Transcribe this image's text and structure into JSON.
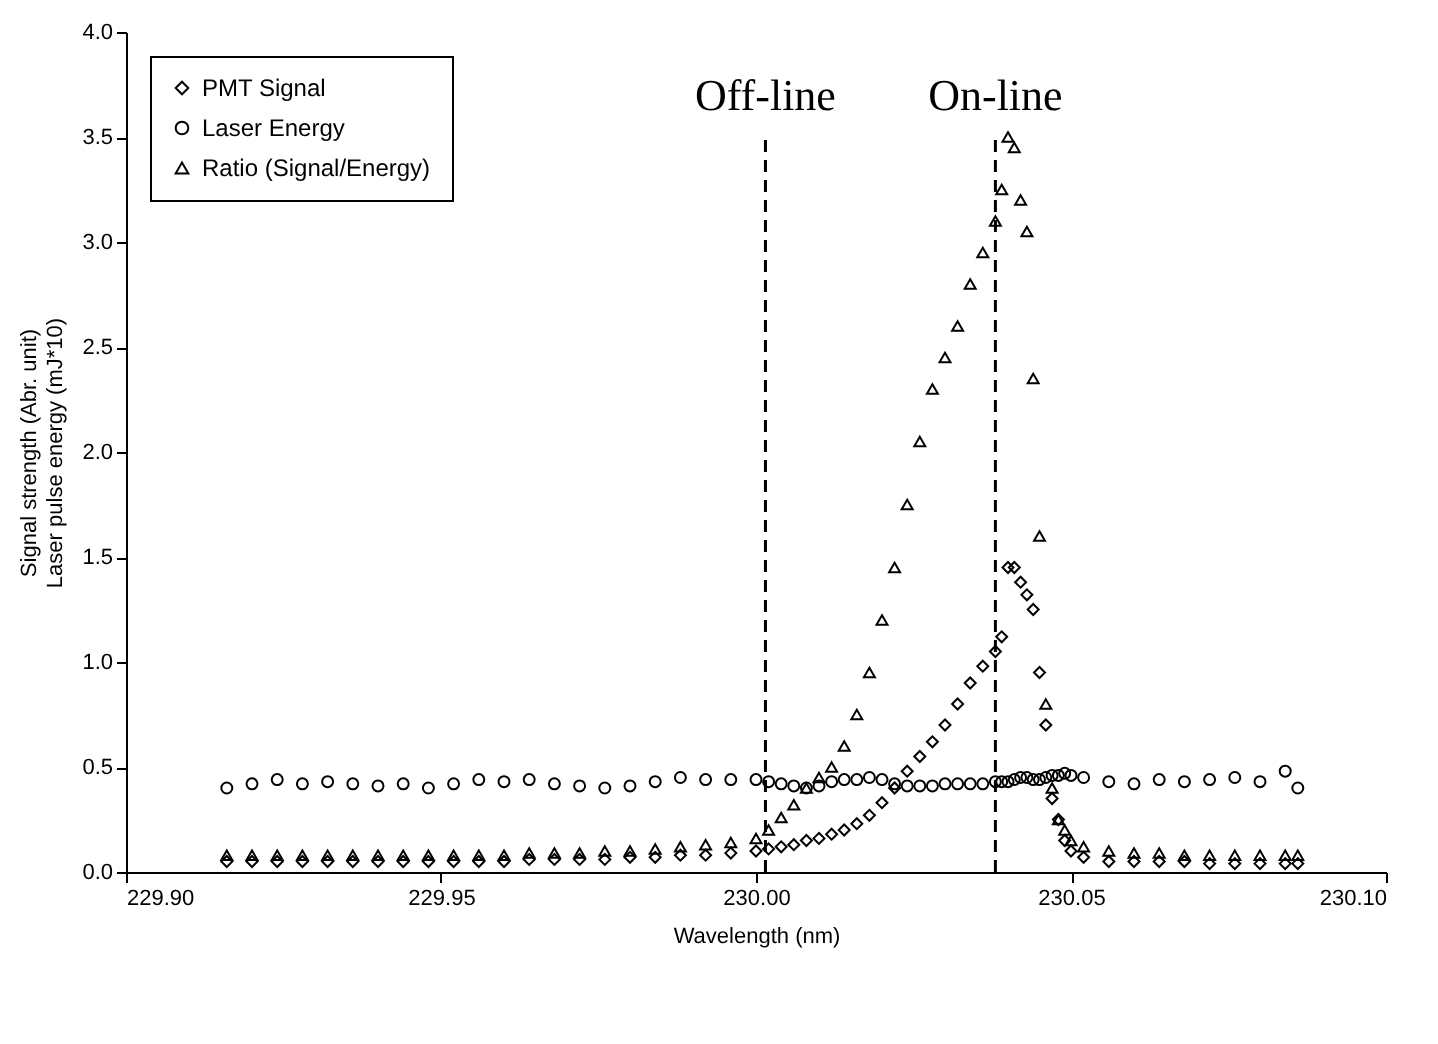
{
  "chart_data": {
    "type": "scatter",
    "xlabel": "Wavelength (nm)",
    "ylabel": "Signal strength (Abr. unit)\nLaser pulse energy (mJ*10)",
    "x": [
      229.916,
      229.92,
      229.924,
      229.928,
      229.932,
      229.936,
      229.94,
      229.944,
      229.948,
      229.952,
      229.956,
      229.96,
      229.964,
      229.968,
      229.972,
      229.976,
      229.98,
      229.984,
      229.988,
      229.992,
      229.996,
      230.0,
      230.002,
      230.004,
      230.006,
      230.008,
      230.01,
      230.012,
      230.014,
      230.016,
      230.018,
      230.02,
      230.022,
      230.024,
      230.026,
      230.028,
      230.03,
      230.032,
      230.034,
      230.036,
      230.038,
      230.039,
      230.04,
      230.041,
      230.042,
      230.043,
      230.044,
      230.045,
      230.046,
      230.047,
      230.048,
      230.049,
      230.05,
      230.052,
      230.056,
      230.06,
      230.064,
      230.068,
      230.072,
      230.076,
      230.08,
      230.084,
      230.086
    ],
    "series": [
      {
        "name": "PMT Signal",
        "color": "#000000",
        "marker": "diamond",
        "values": [
          0.05,
          0.05,
          0.05,
          0.05,
          0.05,
          0.05,
          0.05,
          0.05,
          0.05,
          0.05,
          0.05,
          0.05,
          0.06,
          0.06,
          0.06,
          0.06,
          0.07,
          0.07,
          0.08,
          0.08,
          0.09,
          0.1,
          0.11,
          0.12,
          0.13,
          0.15,
          0.16,
          0.18,
          0.2,
          0.23,
          0.27,
          0.33,
          0.4,
          0.48,
          0.55,
          0.62,
          0.7,
          0.8,
          0.9,
          0.98,
          1.05,
          1.12,
          1.45,
          1.45,
          1.38,
          1.32,
          1.25,
          0.95,
          0.7,
          0.35,
          0.25,
          0.15,
          0.1,
          0.07,
          0.05,
          0.05,
          0.05,
          0.05,
          0.04,
          0.04,
          0.04,
          0.04,
          0.04
        ]
      },
      {
        "name": "Laser Energy",
        "color": "#000000",
        "marker": "circle",
        "values": [
          0.4,
          0.42,
          0.44,
          0.42,
          0.43,
          0.42,
          0.41,
          0.42,
          0.4,
          0.42,
          0.44,
          0.43,
          0.44,
          0.42,
          0.41,
          0.4,
          0.41,
          0.43,
          0.45,
          0.44,
          0.44,
          0.44,
          0.43,
          0.42,
          0.41,
          0.4,
          0.41,
          0.43,
          0.44,
          0.44,
          0.45,
          0.44,
          0.42,
          0.41,
          0.41,
          0.41,
          0.42,
          0.42,
          0.42,
          0.42,
          0.43,
          0.43,
          0.43,
          0.44,
          0.45,
          0.45,
          0.44,
          0.44,
          0.45,
          0.46,
          0.46,
          0.47,
          0.46,
          0.45,
          0.43,
          0.42,
          0.44,
          0.43,
          0.44,
          0.45,
          0.43,
          0.48,
          0.4
        ]
      },
      {
        "name": "Ratio (Signal/Energy)",
        "color": "#000000",
        "marker": "triangle",
        "values": [
          0.08,
          0.08,
          0.08,
          0.08,
          0.08,
          0.08,
          0.08,
          0.08,
          0.08,
          0.08,
          0.08,
          0.08,
          0.09,
          0.09,
          0.09,
          0.1,
          0.1,
          0.11,
          0.12,
          0.13,
          0.14,
          0.16,
          0.2,
          0.26,
          0.32,
          0.4,
          0.45,
          0.5,
          0.6,
          0.75,
          0.95,
          1.2,
          1.45,
          1.75,
          2.05,
          2.3,
          2.45,
          2.6,
          2.8,
          2.95,
          3.1,
          3.25,
          3.5,
          3.45,
          3.2,
          3.05,
          2.35,
          1.6,
          0.8,
          0.4,
          0.25,
          0.2,
          0.15,
          0.12,
          0.1,
          0.09,
          0.09,
          0.08,
          0.08,
          0.08,
          0.08,
          0.08,
          0.08
        ]
      }
    ],
    "xlim": [
      229.9,
      230.1
    ],
    "xticks": [
      {
        "value": 229.9,
        "label": "229.90"
      },
      {
        "value": 229.95,
        "label": "229.95"
      },
      {
        "value": 230.0,
        "label": "230.00"
      },
      {
        "value": 230.05,
        "label": "230.05"
      },
      {
        "value": 230.1,
        "label": "230.10"
      }
    ],
    "ylim": [
      0,
      4.0
    ],
    "yticks": [
      {
        "value": 0,
        "label": "0.0"
      },
      {
        "value": 0.5,
        "label": "0.5"
      },
      {
        "value": 1.0,
        "label": "1.0"
      },
      {
        "value": 1.5,
        "label": "1.5"
      },
      {
        "value": 2.0,
        "label": "2.0"
      },
      {
        "value": 2.5,
        "label": "2.5"
      },
      {
        "value": 3.0,
        "label": "3.0"
      },
      {
        "value": 3.5,
        "label": "3.5"
      },
      {
        "value": 4.0,
        "label": "4.0"
      }
    ],
    "ref_lines": [
      {
        "axis": "x",
        "value": 230.0015,
        "label": "Off-line",
        "line_style": "dashed"
      },
      {
        "axis": "x",
        "value": 230.038,
        "label": "On-line",
        "line_style": "dashed"
      }
    ],
    "grid": false,
    "legend": "top left"
  }
}
